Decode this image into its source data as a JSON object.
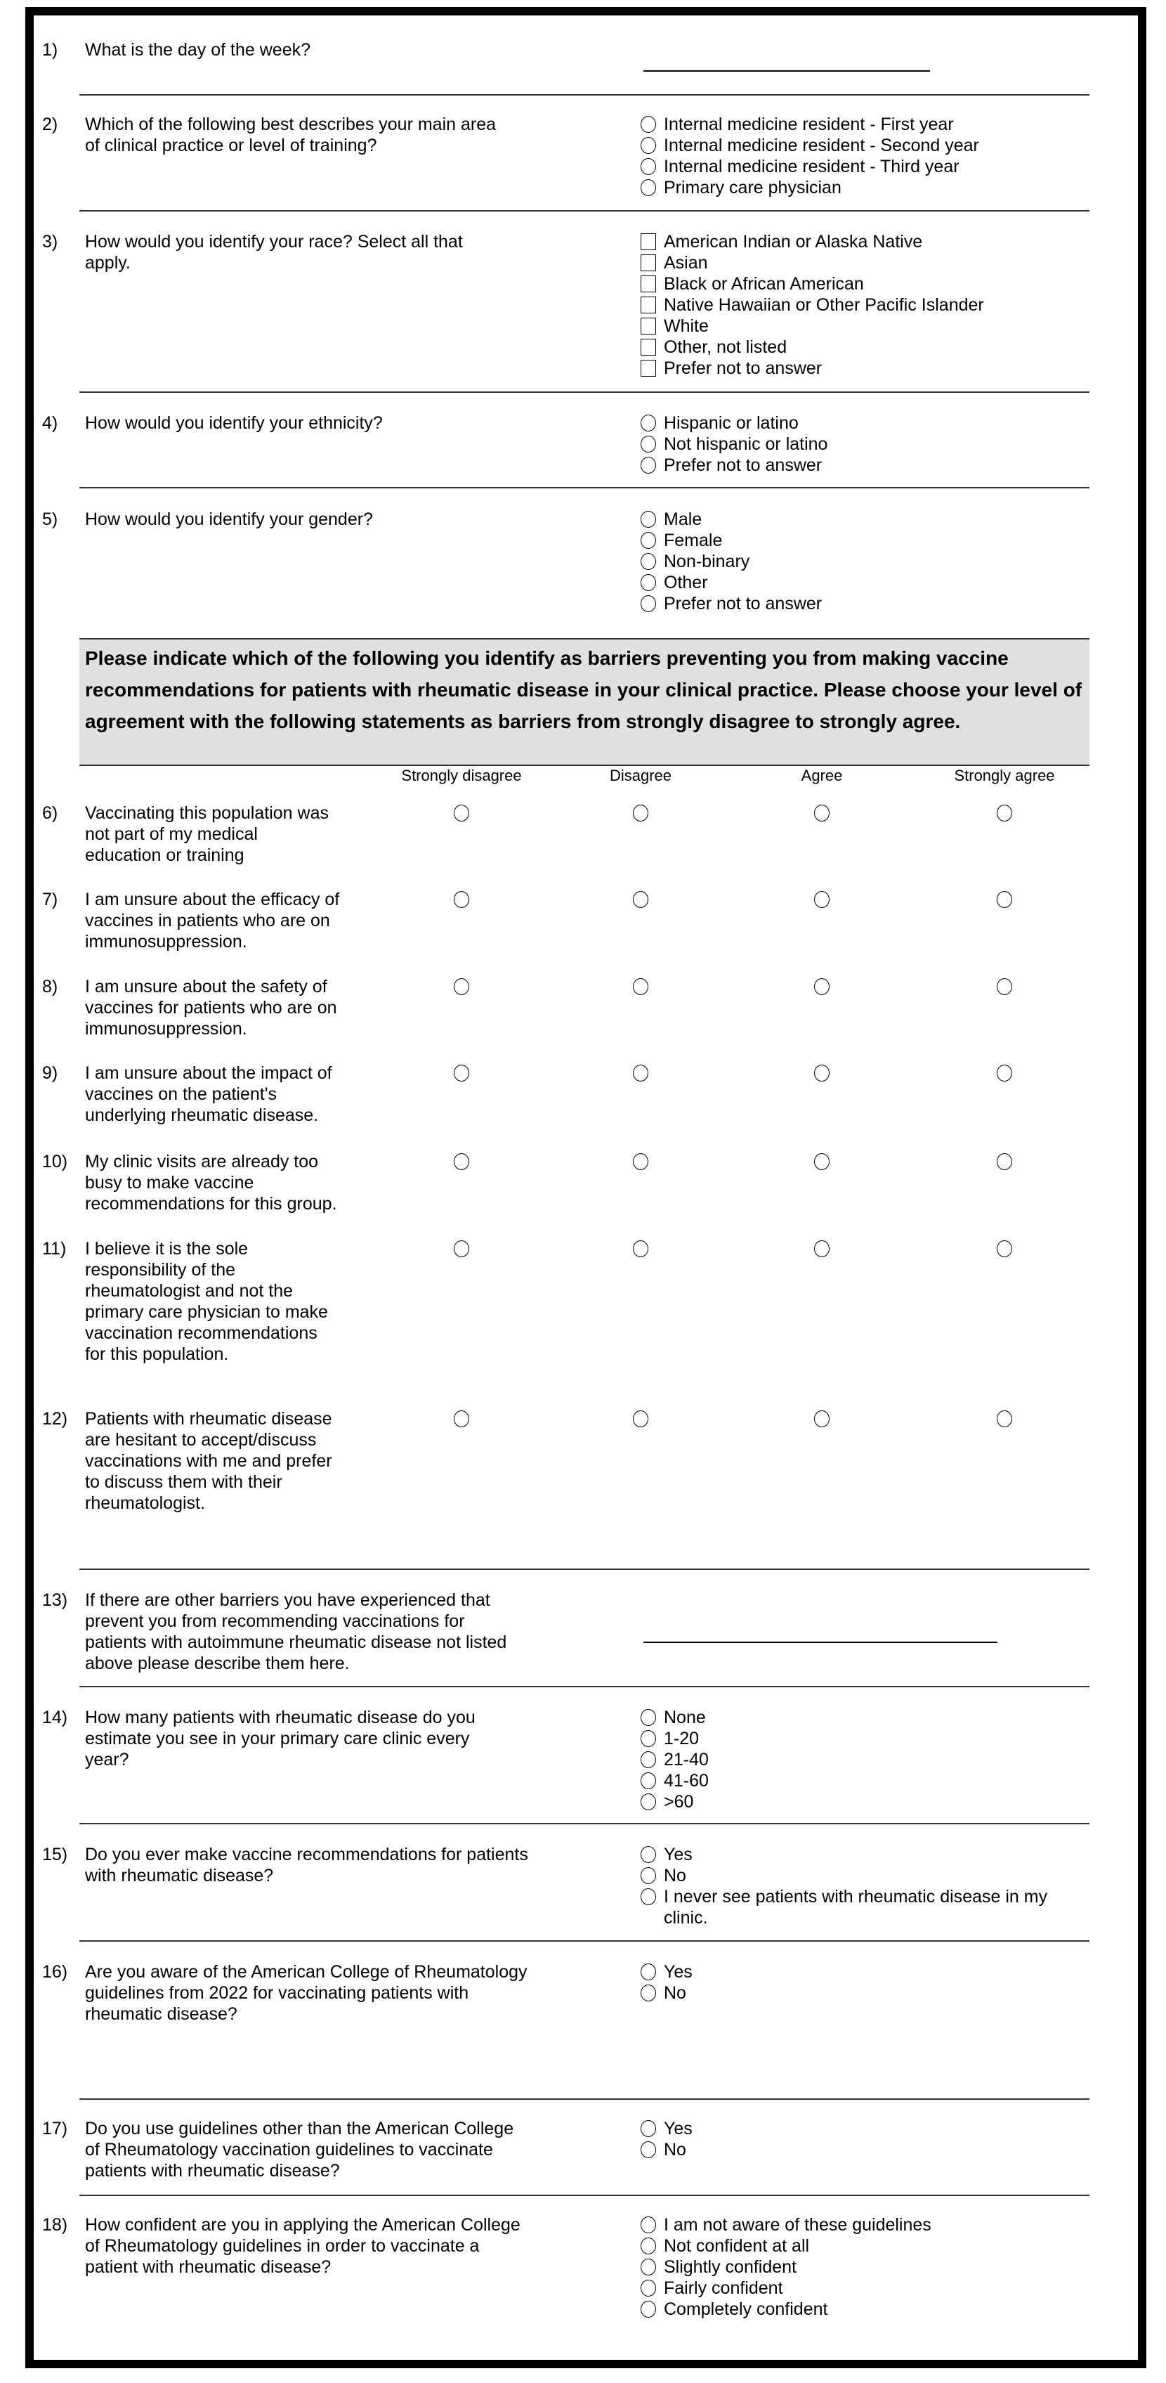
{
  "instructions": "Please indicate which of the following you identify as barriers preventing you from making vaccine recommendations for patients with rheumatic disease in your clinical practice. Please choose your level of agreement with the following statements as barriers from strongly disagree to strongly agree.",
  "likert_columns": [
    "Strongly disagree",
    "Disagree",
    "Agree",
    "Strongly agree"
  ],
  "questions": [
    {
      "num": "1)",
      "text": "What is the day of the week?",
      "type": "blank"
    },
    {
      "num": "2)",
      "text": "Which of the following best describes your main area\nof clinical practice or level of training?",
      "type": "radio",
      "options": [
        "Internal medicine resident - First year",
        "Internal medicine resident - Second year",
        "Internal medicine resident - Third year",
        "Primary care physician"
      ]
    },
    {
      "num": "3)",
      "text": "How would you identify your race? Select all that\napply.",
      "type": "checkbox",
      "options": [
        "American Indian or Alaska Native",
        "Asian",
        "Black or African American",
        "Native Hawaiian or Other Pacific Islander",
        "White",
        "Other, not listed",
        "Prefer not to answer"
      ]
    },
    {
      "num": "4)",
      "text": "How would you identify your ethnicity?",
      "type": "radio",
      "options": [
        "Hispanic or latino",
        "Not hispanic or latino",
        "Prefer not to answer"
      ]
    },
    {
      "num": "5)",
      "text": "How would you identify your gender?",
      "type": "radio",
      "options": [
        "Male",
        "Female",
        "Non-binary",
        "Other",
        "Prefer not to answer"
      ]
    },
    {
      "num": "6)",
      "text": "Vaccinating this population was\nnot part of my medical\neducation or training",
      "type": "likert"
    },
    {
      "num": "7)",
      "text": "I am unsure about the efficacy of\nvaccines in patients who are on\nimmunosuppression.",
      "type": "likert"
    },
    {
      "num": "8)",
      "text": "I am unsure about the safety of\nvaccines for patients who are on\nimmunosuppression.",
      "type": "likert"
    },
    {
      "num": "9)",
      "text": "I am unsure about the impact of\nvaccines on the patient's\nunderlying rheumatic disease.",
      "type": "likert"
    },
    {
      "num": "10)",
      "text": "My clinic visits are already too\nbusy to make vaccine\nrecommendations for this group.",
      "type": "likert"
    },
    {
      "num": "11)",
      "text": "I believe it is the sole\nresponsibility of the\nrheumatologist and not the\nprimary care physician to make\nvaccination recommendations\nfor this population.",
      "type": "likert"
    },
    {
      "num": "12)",
      "text": "Patients with rheumatic disease\nare hesitant to accept/discuss\nvaccinations with me and prefer\nto discuss them with their\nrheumatologist.",
      "type": "likert"
    },
    {
      "num": "13)",
      "text": "If there are other barriers you have experienced that\nprevent you from recommending vaccinations for\npatients with autoimmune rheumatic disease not listed\nabove please describe them here.",
      "type": "blank"
    },
    {
      "num": "14)",
      "text": "How many patients with rheumatic disease do you\nestimate you see in your primary care clinic every\nyear?",
      "type": "radio",
      "options": [
        "None",
        "1-20",
        "21-40",
        "41-60",
        ">60"
      ]
    },
    {
      "num": "15)",
      "text": "Do you ever make vaccine recommendations for patients\nwith rheumatic disease?",
      "type": "radio",
      "options": [
        "Yes",
        "No",
        "I never see patients with rheumatic disease in my\nclinic."
      ]
    },
    {
      "num": "16)",
      "text": "Are you aware of the American College of Rheumatology\nguidelines from 2022 for vaccinating patients with\nrheumatic disease?",
      "type": "radio",
      "options": [
        "Yes",
        "No"
      ]
    },
    {
      "num": "17)",
      "text": "Do you use guidelines other than the American College\nof Rheumatology vaccination guidelines to vaccinate\npatients with rheumatic disease?",
      "type": "radio",
      "options": [
        "Yes",
        "No"
      ]
    },
    {
      "num": "18)",
      "text": "How confident are you in applying the American College\nof Rheumatology guidelines in order to vaccinate a\npatient with rheumatic disease?",
      "type": "radio",
      "options": [
        "I am not aware of these guidelines",
        "Not confident at all",
        "Slightly confident",
        "Fairly confident",
        "Completely confident"
      ]
    }
  ]
}
